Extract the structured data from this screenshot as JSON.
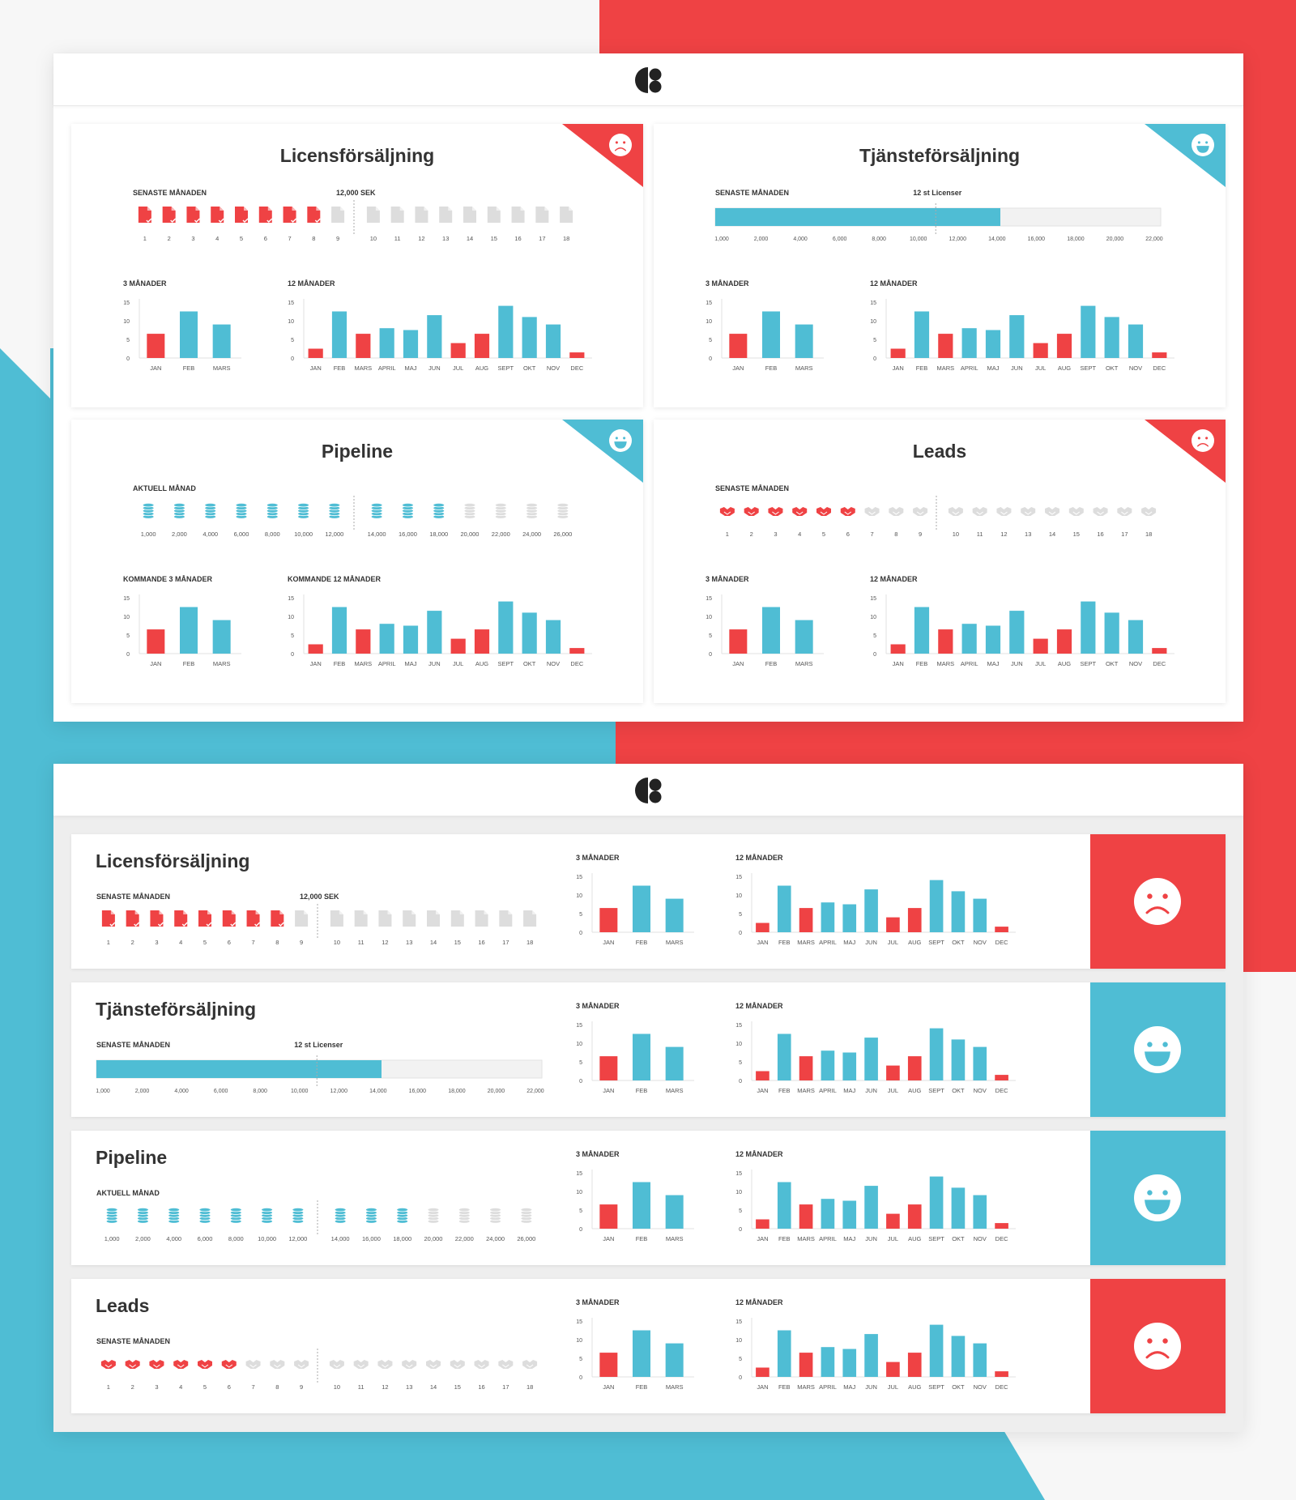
{
  "colors": {
    "red": "#ef4244",
    "blue": "#4fbdd4",
    "gray": "#dddddd"
  },
  "icons": {
    "logo": "brand-logo-icon",
    "sad": "sad-face-icon",
    "happy": "happy-face-icon",
    "document": "document-icon",
    "coins": "coin-stack-icon",
    "handshake": "handshake-icon"
  },
  "dashboard1": {
    "cards": [
      {
        "title": "Licensförsäljning",
        "mood": "sad",
        "tracker": {
          "type": "docs",
          "label": "SENASTE MÅNADEN",
          "target_label": "12,000 SEK",
          "count": 18,
          "filled": 8,
          "break_after": 9,
          "labels": [
            "1",
            "2",
            "3",
            "4",
            "5",
            "6",
            "7",
            "8",
            "9",
            "10",
            "11",
            "12",
            "13",
            "14",
            "15",
            "16",
            "17",
            "18"
          ]
        },
        "chart3_label": "3 MÅNADER",
        "chart12_label": "12 MÅNADER"
      },
      {
        "title": "Tjänsteförsäljning",
        "mood": "happy",
        "tracker": {
          "type": "progress",
          "label": "SENASTE MÅNADEN",
          "target_label": "12 st Licenser",
          "progress": 0.64,
          "target_fraction": 0.495,
          "labels": [
            "1,000",
            "2,000",
            "4,000",
            "6,000",
            "8,000",
            "10,000",
            "12,000",
            "14,000",
            "16,000",
            "18,000",
            "20,000",
            "22,000"
          ]
        },
        "chart3_label": "3 MÅNADER",
        "chart12_label": "12 MÅNADER"
      },
      {
        "title": "Pipeline",
        "mood": "happy",
        "tracker": {
          "type": "coins",
          "label": "AKTUELL MÅNAD",
          "count": 14,
          "filled": 10,
          "break_after": 7,
          "labels": [
            "1,000",
            "2,000",
            "4,000",
            "6,000",
            "8,000",
            "10,000",
            "12,000",
            "14,000",
            "16,000",
            "18,000",
            "20,000",
            "22,000",
            "24,000",
            "26,000"
          ]
        },
        "chart3_label": "KOMMANDE 3 MÅNADER",
        "chart12_label": "KOMMANDE 12 MÅNADER"
      },
      {
        "title": "Leads",
        "mood": "sad",
        "tracker": {
          "type": "hands",
          "label": "SENASTE MÅNADEN",
          "count": 18,
          "filled": 6,
          "break_after": 9,
          "labels": [
            "1",
            "2",
            "3",
            "4",
            "5",
            "6",
            "7",
            "8",
            "9",
            "10",
            "11",
            "12",
            "13",
            "14",
            "15",
            "16",
            "17",
            "18"
          ]
        },
        "chart3_label": "3 MÅNADER",
        "chart12_label": "12 MÅNADER"
      }
    ]
  },
  "dashboard2": {
    "rows": [
      {
        "title": "Licensförsäljning",
        "mood": "sad",
        "tracker": {
          "type": "docs",
          "label": "SENASTE MÅNADEN",
          "target_label": "12,000 SEK",
          "count": 18,
          "filled": 8,
          "break_after": 9,
          "labels": [
            "1",
            "2",
            "3",
            "4",
            "5",
            "6",
            "7",
            "8",
            "9",
            "10",
            "11",
            "12",
            "13",
            "14",
            "15",
            "16",
            "17",
            "18"
          ]
        },
        "chart3_label": "3 MÅNADER",
        "chart12_label": "12 MÅNADER"
      },
      {
        "title": "Tjänsteförsäljning",
        "mood": "happy",
        "tracker": {
          "type": "progress",
          "label": "SENASTE MÅNADEN",
          "target_label": "12 st Licenser",
          "progress": 0.64,
          "target_fraction": 0.495,
          "labels": [
            "1,000",
            "2,000",
            "4,000",
            "6,000",
            "8,000",
            "10,000",
            "12,000",
            "14,000",
            "16,000",
            "18,000",
            "20,000",
            "22,000"
          ]
        },
        "chart3_label": "3 MÅNADER",
        "chart12_label": "12 MÅNADER"
      },
      {
        "title": "Pipeline",
        "mood": "happy",
        "tracker": {
          "type": "coins",
          "label": "AKTUELL MÅNAD",
          "count": 14,
          "filled": 10,
          "break_after": 7,
          "labels": [
            "1,000",
            "2,000",
            "4,000",
            "6,000",
            "8,000",
            "10,000",
            "12,000",
            "14,000",
            "16,000",
            "18,000",
            "20,000",
            "22,000",
            "24,000",
            "26,000"
          ]
        },
        "chart3_label": "3 MÅNADER",
        "chart12_label": "12 MÅNADER"
      },
      {
        "title": "Leads",
        "mood": "sad",
        "tracker": {
          "type": "hands",
          "label": "SENASTE MÅNADEN",
          "count": 18,
          "filled": 6,
          "break_after": 9,
          "labels": [
            "1",
            "2",
            "3",
            "4",
            "5",
            "6",
            "7",
            "8",
            "9",
            "10",
            "11",
            "12",
            "13",
            "14",
            "15",
            "16",
            "17",
            "18"
          ]
        },
        "chart3_label": "3 MÅNADER",
        "chart12_label": "12 MÅNADER"
      }
    ]
  },
  "chart_data": [
    {
      "type": "bar",
      "name": "3-month",
      "categories": [
        "JAN",
        "FEB",
        "MARS"
      ],
      "values": [
        6.5,
        12.5,
        9
      ],
      "value_colors": [
        "red",
        "blue",
        "blue"
      ],
      "yticks": [
        "15",
        "10",
        "5",
        "0"
      ],
      "ylim": [
        0,
        15
      ]
    },
    {
      "type": "bar",
      "name": "12-month",
      "categories": [
        "JAN",
        "FEB",
        "MARS",
        "APRIL",
        "MAJ",
        "JUN",
        "JUL",
        "AUG",
        "SEPT",
        "OKT",
        "NOV",
        "DEC"
      ],
      "values": [
        2.5,
        12.5,
        6.5,
        8,
        7.5,
        11.5,
        4,
        6.5,
        14,
        11,
        9,
        1.5
      ],
      "value_colors": [
        "red",
        "blue",
        "red",
        "blue",
        "blue",
        "blue",
        "red",
        "red",
        "blue",
        "blue",
        "blue",
        "red"
      ],
      "yticks": [
        "15",
        "10",
        "5",
        "0"
      ],
      "ylim": [
        0,
        15
      ]
    }
  ]
}
